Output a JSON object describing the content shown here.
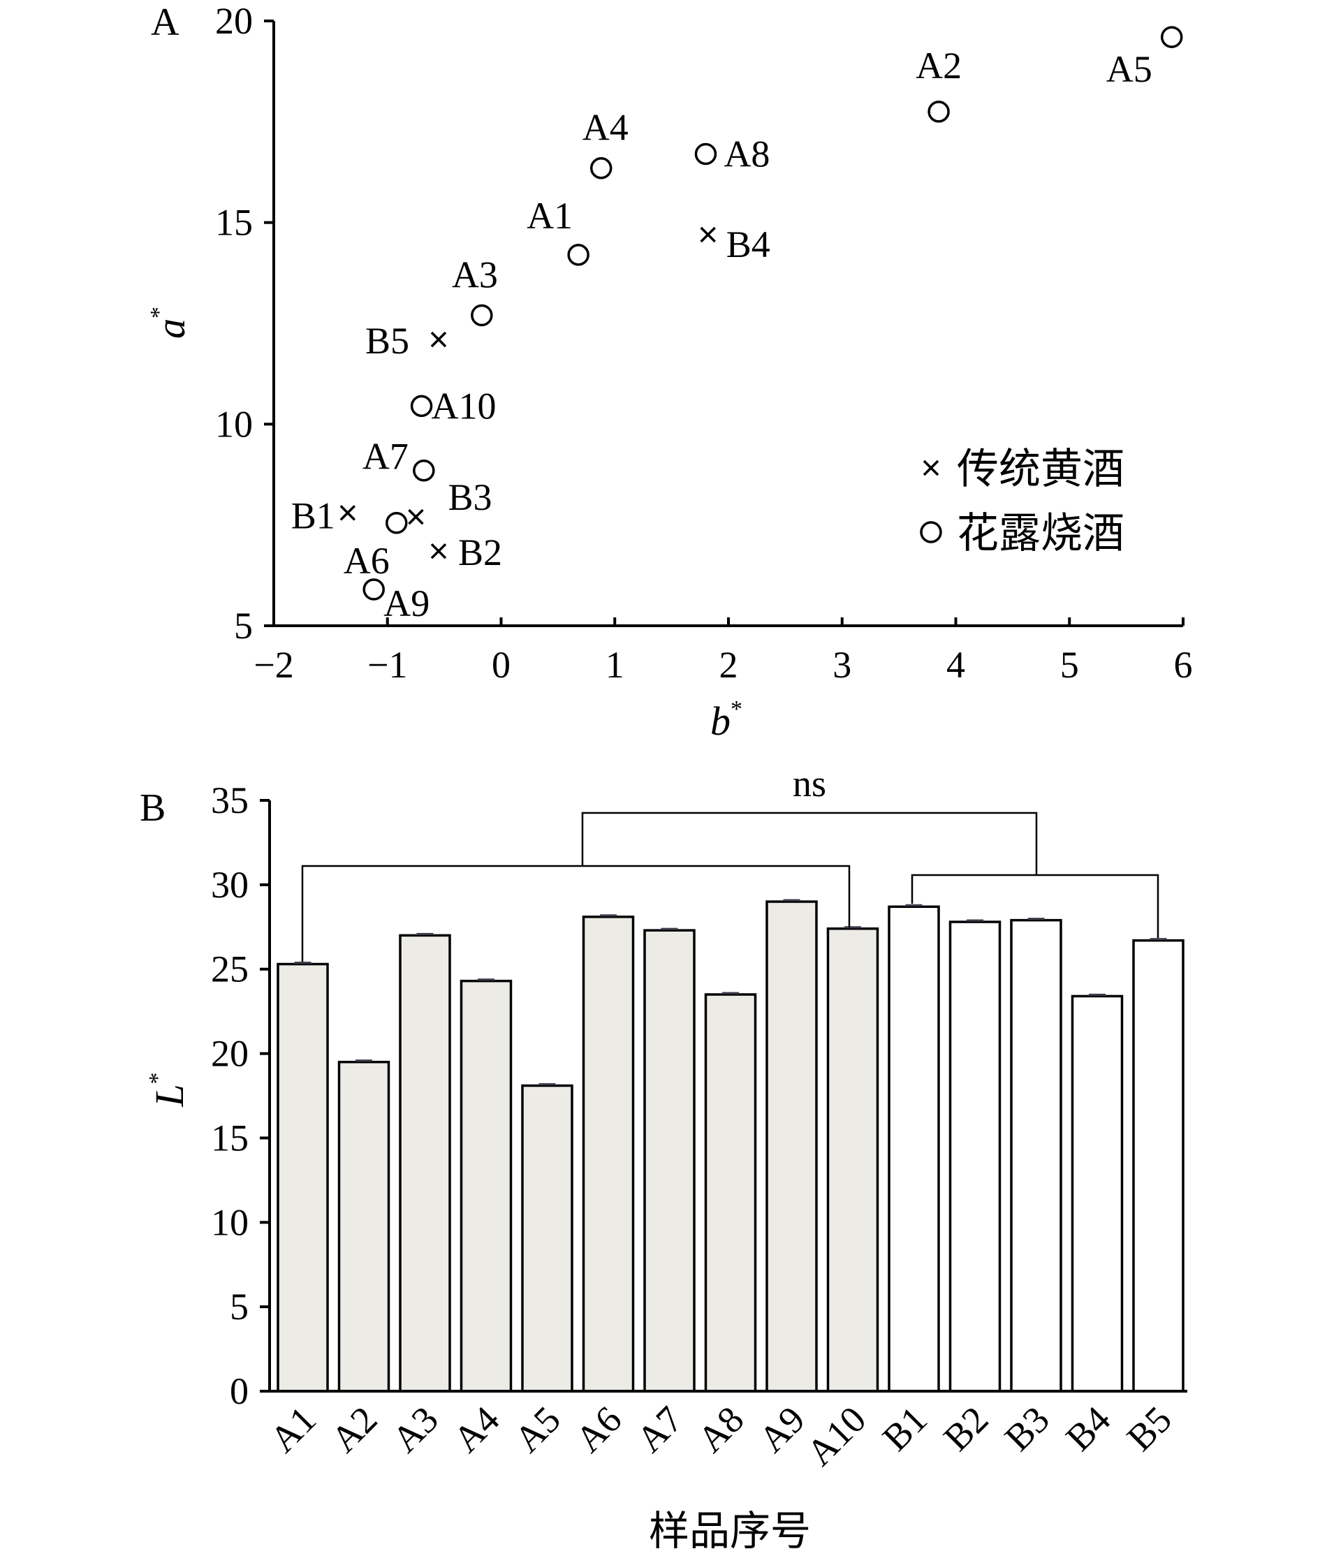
{
  "chart_data": [
    {
      "type": "scatter",
      "panel_label": "A",
      "xlabel": "b",
      "ylabel": "a",
      "label_superscript": "*",
      "xlim": [
        -2,
        6
      ],
      "ylim": [
        5,
        20
      ],
      "x_ticks": [
        "−2",
        "−1",
        "0",
        "1",
        "2",
        "3",
        "4",
        "5",
        "6"
      ],
      "y_ticks": [
        "5",
        "10",
        "15",
        "20"
      ],
      "legend_position": "right",
      "series": [
        {
          "name": "传统黄酒",
          "marker": "x",
          "points": [
            {
              "label": "B1",
              "x": -1.35,
              "y": 7.8
            },
            {
              "label": "B2",
              "x": -0.55,
              "y": 6.85
            },
            {
              "label": "B3",
              "x": -0.75,
              "y": 7.7
            },
            {
              "label": "B4",
              "x": 1.82,
              "y": 14.7
            },
            {
              "label": "B5",
              "x": -0.55,
              "y": 12.1
            }
          ]
        },
        {
          "name": "花露烧酒",
          "marker": "circle",
          "points": [
            {
              "label": "A1",
              "x": 0.68,
              "y": 14.2
            },
            {
              "label": "A2",
              "x": 3.85,
              "y": 17.75
            },
            {
              "label": "A3",
              "x": -0.17,
              "y": 12.7
            },
            {
              "label": "A4",
              "x": 0.88,
              "y": 16.35
            },
            {
              "label": "A5",
              "x": 5.9,
              "y": 19.6
            },
            {
              "label": "A6",
              "x": -0.92,
              "y": 7.55
            },
            {
              "label": "A7",
              "x": -0.68,
              "y": 8.85
            },
            {
              "label": "A8",
              "x": 1.8,
              "y": 16.7
            },
            {
              "label": "A9",
              "x": -1.12,
              "y": 5.9
            },
            {
              "label": "A10",
              "x": -0.7,
              "y": 10.45
            }
          ]
        }
      ]
    },
    {
      "type": "bar",
      "panel_label": "B",
      "ylabel": "L",
      "label_superscript": "*",
      "xlabel": "样品序号",
      "ylim": [
        0,
        35
      ],
      "y_ticks": [
        "0",
        "5",
        "10",
        "15",
        "20",
        "25",
        "30",
        "35"
      ],
      "categories": [
        "A1",
        "A2",
        "A3",
        "A4",
        "A5",
        "A6",
        "A7",
        "A8",
        "A9",
        "A10",
        "B1",
        "B2",
        "B3",
        "B4",
        "B5"
      ],
      "values": [
        25.3,
        19.5,
        27.0,
        24.3,
        18.1,
        28.1,
        27.3,
        23.5,
        29.0,
        27.4,
        28.7,
        27.8,
        27.9,
        23.4,
        26.7
      ],
      "group_colors": {
        "A": "#ecebe5",
        "B": "#ffffff"
      },
      "annotation": "ns"
    }
  ]
}
